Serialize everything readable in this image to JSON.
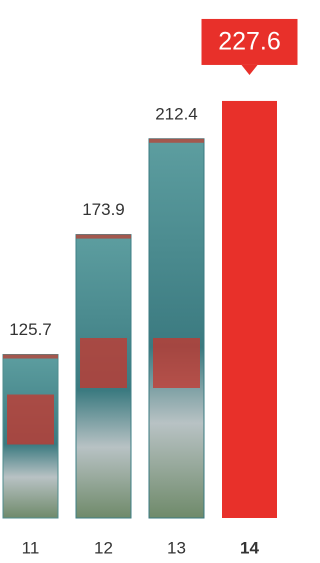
{
  "chart_data": {
    "type": "bar",
    "categories": [
      "11",
      "12",
      "13",
      "14"
    ],
    "values": [
      125.7,
      173.9,
      212.4,
      227.6
    ],
    "colors": [
      "#4f8c8e",
      "#3e7f86",
      "#3a7a80",
      "#e8302a"
    ],
    "ylim": [
      60,
      232
    ]
  }
}
